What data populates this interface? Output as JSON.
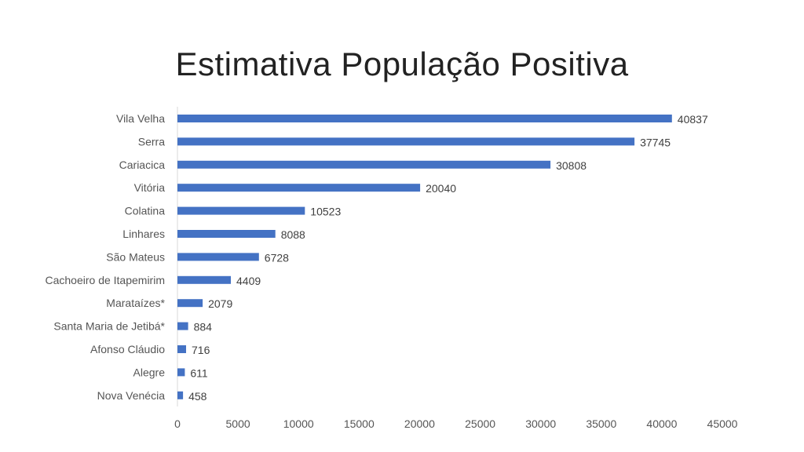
{
  "chart_data": {
    "type": "bar",
    "orientation": "horizontal",
    "title": "Estimativa População Positiva",
    "categories": [
      "Vila Velha",
      "Serra",
      "Cariacica",
      "Vitória",
      "Colatina",
      "Linhares",
      "São Mateus",
      "Cachoeiro de Itapemirim",
      "Marataízes*",
      "Santa Maria de Jetibá*",
      "Afonso Cláudio",
      "Alegre",
      "Nova Venécia"
    ],
    "values": [
      40837,
      37745,
      30808,
      20040,
      10523,
      8088,
      6728,
      4409,
      2079,
      884,
      716,
      611,
      458
    ],
    "value_labels": [
      "40837",
      "37745",
      "30808",
      "20040",
      "10523",
      "8088",
      "6728",
      "4409",
      "2079",
      "884",
      "716",
      "611",
      "458"
    ],
    "x_ticks": [
      "0",
      "5000",
      "10000",
      "15000",
      "20000",
      "25000",
      "30000",
      "35000",
      "40000",
      "45000"
    ],
    "xlim": [
      0,
      45000
    ],
    "grid": false,
    "legend": "none",
    "bar_color": "#4472C4",
    "axis_color": "#D9D9D9"
  }
}
